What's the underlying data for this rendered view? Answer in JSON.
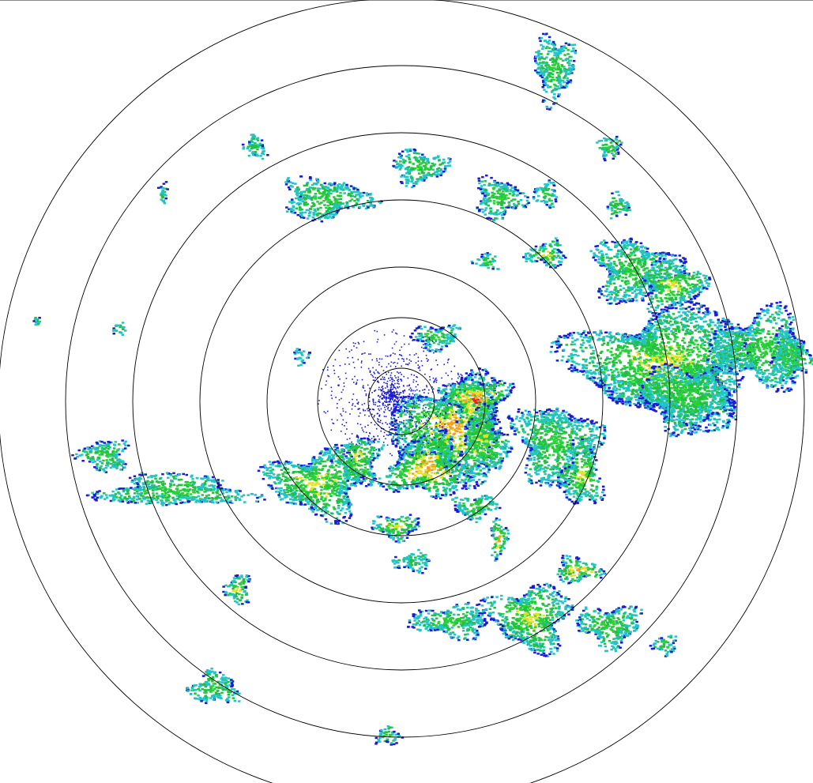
{
  "display": "radar-ppi-reflectivity",
  "range_ring_count": 7,
  "ring_color": "#000000",
  "background": "#ffffff",
  "palette": {
    "weak": "#1a1ad2",
    "light": "#22c4c4",
    "moderate_low": "#22c040",
    "moderate": "#2ad23a",
    "heavy": "#e6e022",
    "very_heavy": "#f0a020",
    "intense": "#e82222"
  }
}
